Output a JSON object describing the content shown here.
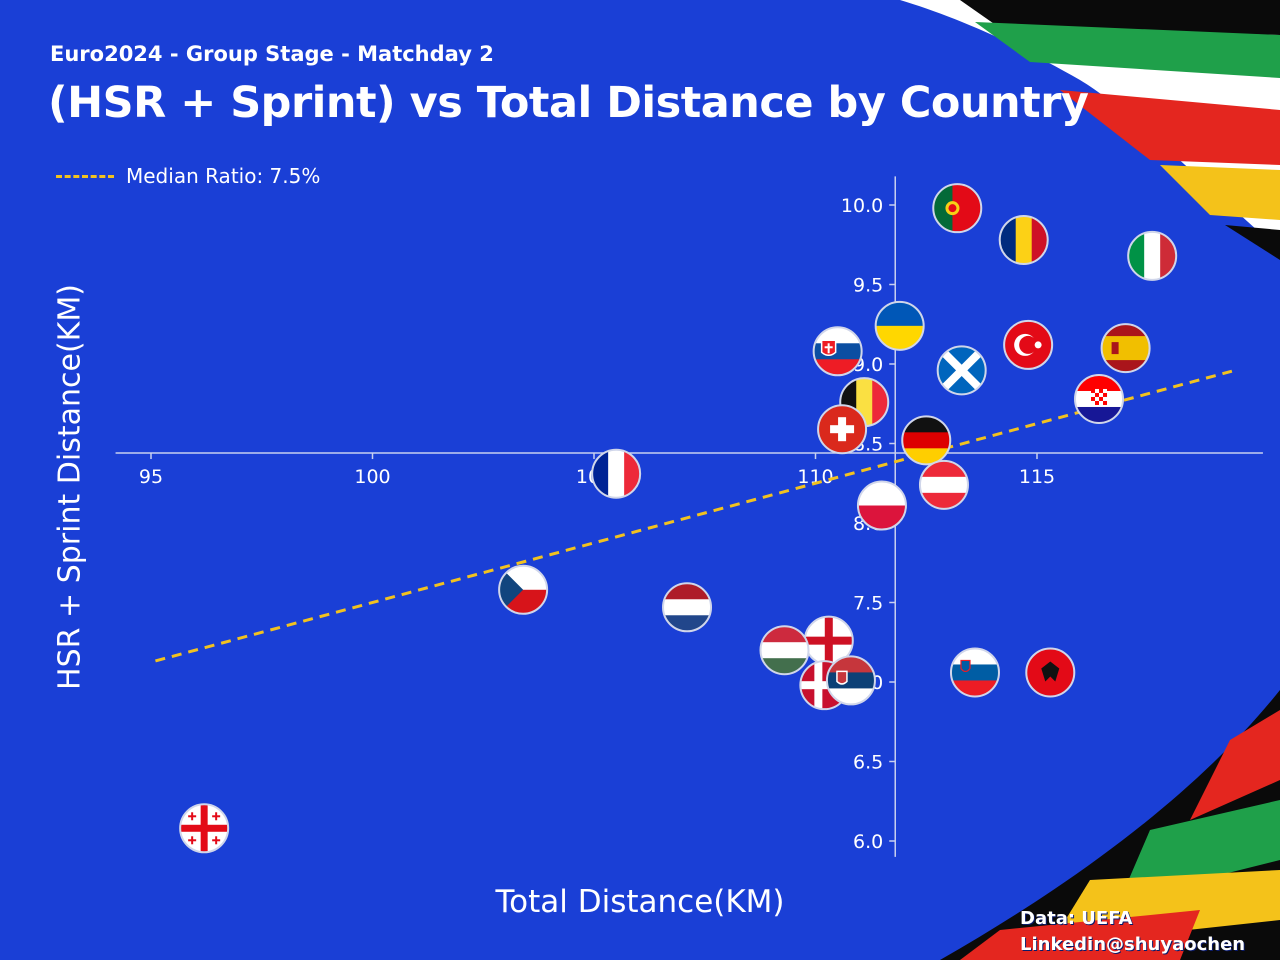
{
  "header": {
    "subtitle": "Euro2024 - Group Stage - Matchday 2",
    "title": "(HSR + Sprint) vs Total Distance by Country"
  },
  "legend": {
    "median_label": "Median Ratio: 7.5%"
  },
  "credits": {
    "source": "Data: UEFA",
    "author": "Linkedin@shuyaochen"
  },
  "colors": {
    "background": "#1a3fd6",
    "median_line": "#f2c21f",
    "axis": "#c8d0f0"
  },
  "chart_data": {
    "type": "scatter",
    "xlabel": "Total Distance(KM)",
    "ylabel": "HSR + Sprint Distance(KM)",
    "xlim": [
      94.2,
      120.1
    ],
    "ylim": [
      5.9,
      10.18
    ],
    "x_ticks": [
      95,
      100,
      105,
      110,
      115
    ],
    "x_tick_labels": [
      "95",
      "100",
      "105",
      "110",
      "115"
    ],
    "y_ticks": [
      6.0,
      6.5,
      7.0,
      7.5,
      8.0,
      8.5,
      9.0,
      9.5,
      10.0
    ],
    "y_tick_labels": [
      "6.0",
      "6.5",
      "7.0",
      "7.5",
      "8.0",
      "8.5",
      "9.0",
      "9.5",
      "10.0"
    ],
    "axes_cross": {
      "x_at": 111.8,
      "y_at": 8.44
    },
    "grid": false,
    "median_ratio_line": {
      "ratio": 0.075,
      "x_range": [
        95.1,
        119.4
      ],
      "style": "dashed"
    },
    "markers": "country flags",
    "points": [
      {
        "x": 113.2,
        "y": 9.98,
        "flag": "portugal"
      },
      {
        "x": 114.7,
        "y": 9.78,
        "flag": "romania"
      },
      {
        "x": 117.6,
        "y": 9.68,
        "flag": "italy"
      },
      {
        "x": 111.9,
        "y": 9.24,
        "flag": "ukraine"
      },
      {
        "x": 114.8,
        "y": 9.12,
        "flag": "turkey"
      },
      {
        "x": 117.0,
        "y": 9.1,
        "flag": "spain"
      },
      {
        "x": 110.5,
        "y": 9.08,
        "flag": "slovakia"
      },
      {
        "x": 113.3,
        "y": 8.96,
        "flag": "scotland"
      },
      {
        "x": 111.1,
        "y": 8.76,
        "flag": "belgium"
      },
      {
        "x": 116.4,
        "y": 8.78,
        "flag": "croatia"
      },
      {
        "x": 110.6,
        "y": 8.59,
        "flag": "switzerland"
      },
      {
        "x": 112.5,
        "y": 8.52,
        "flag": "germany"
      },
      {
        "x": 105.5,
        "y": 8.31,
        "flag": "france"
      },
      {
        "x": 112.9,
        "y": 8.24,
        "flag": "austria"
      },
      {
        "x": 111.5,
        "y": 8.11,
        "flag": "poland"
      },
      {
        "x": 103.4,
        "y": 7.58,
        "flag": "czechia"
      },
      {
        "x": 107.1,
        "y": 7.47,
        "flag": "netherlands"
      },
      {
        "x": 110.3,
        "y": 7.26,
        "flag": "england"
      },
      {
        "x": 109.3,
        "y": 7.2,
        "flag": "hungary"
      },
      {
        "x": 110.2,
        "y": 6.98,
        "flag": "denmark"
      },
      {
        "x": 110.8,
        "y": 7.01,
        "flag": "serbia"
      },
      {
        "x": 113.6,
        "y": 7.06,
        "flag": "slovenia"
      },
      {
        "x": 115.3,
        "y": 7.06,
        "flag": "albania"
      },
      {
        "x": 96.2,
        "y": 6.08,
        "flag": "georgia"
      }
    ]
  }
}
